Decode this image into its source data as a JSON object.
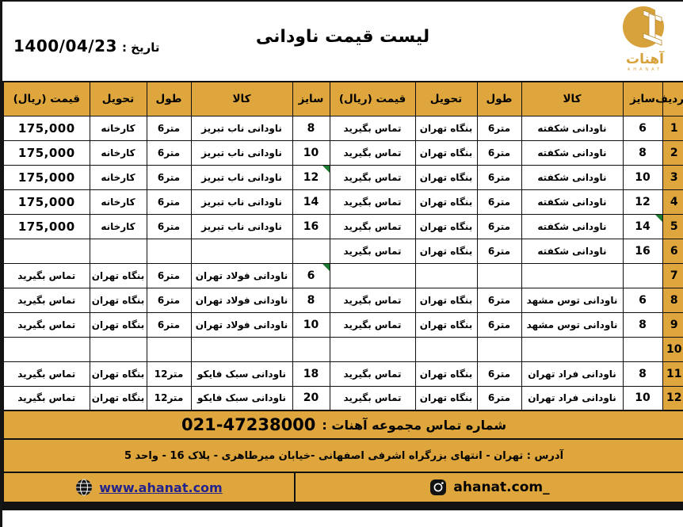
{
  "colors": {
    "gold": "#DEA63C",
    "note_green": "#1E7B34",
    "link_blue": "#23238E",
    "text": "#000000"
  },
  "header": {
    "title": "لیست قیمت ناودانی",
    "date_label": "تاریخ :",
    "date_value": "1400/04/23",
    "logo": {
      "brand": "آهنات",
      "brand_latin": "AHANAT"
    }
  },
  "table": {
    "headers": {
      "row": "ردیف",
      "size": "سایز",
      "product": "کالا",
      "length": "طول",
      "delivery": "تحویل",
      "price": "قیمت (ریال)"
    },
    "rows": [
      {
        "no": "1",
        "right": {
          "size": "6",
          "product": "ناودانی شکفته",
          "length": "6متر",
          "delivery": "بنگاه تهران",
          "price": "تماس بگیرید",
          "note": false
        },
        "left": {
          "size": "8",
          "product": "ناودانی ناب تبریز",
          "length": "6متر",
          "delivery": "کارخانه",
          "price": "175,000",
          "note": false
        }
      },
      {
        "no": "2",
        "right": {
          "size": "8",
          "product": "ناودانی شکفته",
          "length": "6متر",
          "delivery": "بنگاه تهران",
          "price": "تماس بگیرید",
          "note": false
        },
        "left": {
          "size": "10",
          "product": "ناودانی ناب تبریز",
          "length": "6متر",
          "delivery": "کارخانه",
          "price": "175,000",
          "note": false
        }
      },
      {
        "no": "3",
        "right": {
          "size": "10",
          "product": "ناودانی شکفته",
          "length": "6متر",
          "delivery": "بنگاه تهران",
          "price": "تماس بگیرید",
          "note": false
        },
        "left": {
          "size": "12",
          "product": "ناودانی ناب تبریز",
          "length": "6متر",
          "delivery": "کارخانه",
          "price": "175,000",
          "note": true
        }
      },
      {
        "no": "4",
        "right": {
          "size": "12",
          "product": "ناودانی شکفته",
          "length": "6متر",
          "delivery": "بنگاه تهران",
          "price": "تماس بگیرید",
          "note": false
        },
        "left": {
          "size": "14",
          "product": "ناودانی ناب تبریز",
          "length": "6متر",
          "delivery": "کارخانه",
          "price": "175,000",
          "note": false
        }
      },
      {
        "no": "5",
        "right": {
          "size": "14",
          "product": "ناودانی شکفته",
          "length": "6متر",
          "delivery": "بنگاه تهران",
          "price": "تماس بگیرید",
          "note": true
        },
        "left": {
          "size": "16",
          "product": "ناودانی ناب تبریز",
          "length": "6متر",
          "delivery": "کارخانه",
          "price": "175,000",
          "note": false
        }
      },
      {
        "no": "6",
        "right": {
          "size": "16",
          "product": "ناودانی شکفته",
          "length": "6متر",
          "delivery": "بنگاه تهران",
          "price": "تماس بگیرید",
          "note": false
        },
        "left": {
          "size": "",
          "product": "",
          "length": "",
          "delivery": "",
          "price": "",
          "note": false
        }
      },
      {
        "no": "7",
        "right": {
          "size": "",
          "product": "",
          "length": "",
          "delivery": "",
          "price": "",
          "note": false
        },
        "left": {
          "size": "6",
          "product": "ناودانی فولاد تهران",
          "length": "6متر",
          "delivery": "بنگاه تهران",
          "price": "تماس بگیرید",
          "note": true
        }
      },
      {
        "no": "8",
        "right": {
          "size": "6",
          "product": "ناودانی توس مشهد",
          "length": "6متر",
          "delivery": "بنگاه تهران",
          "price": "تماس بگیرید",
          "note": false
        },
        "left": {
          "size": "8",
          "product": "ناودانی فولاد تهران",
          "length": "6متر",
          "delivery": "بنگاه تهران",
          "price": "تماس بگیرید",
          "note": false
        }
      },
      {
        "no": "9",
        "right": {
          "size": "8",
          "product": "ناودانی توس مشهد",
          "length": "6متر",
          "delivery": "بنگاه تهران",
          "price": "تماس بگیرید",
          "note": false
        },
        "left": {
          "size": "10",
          "product": "ناودانی فولاد تهران",
          "length": "6متر",
          "delivery": "بنگاه تهران",
          "price": "تماس بگیرید",
          "note": false
        }
      },
      {
        "no": "10",
        "right": {
          "size": "",
          "product": "",
          "length": "",
          "delivery": "",
          "price": "",
          "note": false
        },
        "left": {
          "size": "",
          "product": "",
          "length": "",
          "delivery": "",
          "price": "",
          "note": false
        }
      },
      {
        "no": "11",
        "right": {
          "size": "8",
          "product": "ناودانی فراد تهران",
          "length": "6متر",
          "delivery": "بنگاه تهران",
          "price": "تماس بگیرید",
          "note": false
        },
        "left": {
          "size": "18",
          "product": "ناودانی سبک فایکو",
          "length": "12متر",
          "delivery": "بنگاه تهران",
          "price": "تماس بگیرید",
          "note": false
        }
      },
      {
        "no": "12",
        "right": {
          "size": "10",
          "product": "ناودانی فراد تهران",
          "length": "6متر",
          "delivery": "بنگاه تهران",
          "price": "تماس بگیرید",
          "note": false
        },
        "left": {
          "size": "20",
          "product": "ناودانی سبک فایکو",
          "length": "12متر",
          "delivery": "بنگاه تهران",
          "price": "تماس بگیرید",
          "note": false
        }
      }
    ]
  },
  "footer": {
    "contact_label": "شماره تماس مجموعه آهنات :",
    "contact_number": "021-47238000",
    "address": "آدرس : تهران - انتهای بزرگراه اشرفی اصفهانی -خیابان میرطاهری - پلاک 16 - واحد 5",
    "website": "www.ahanat.com",
    "instagram": "ahanat.com_"
  }
}
